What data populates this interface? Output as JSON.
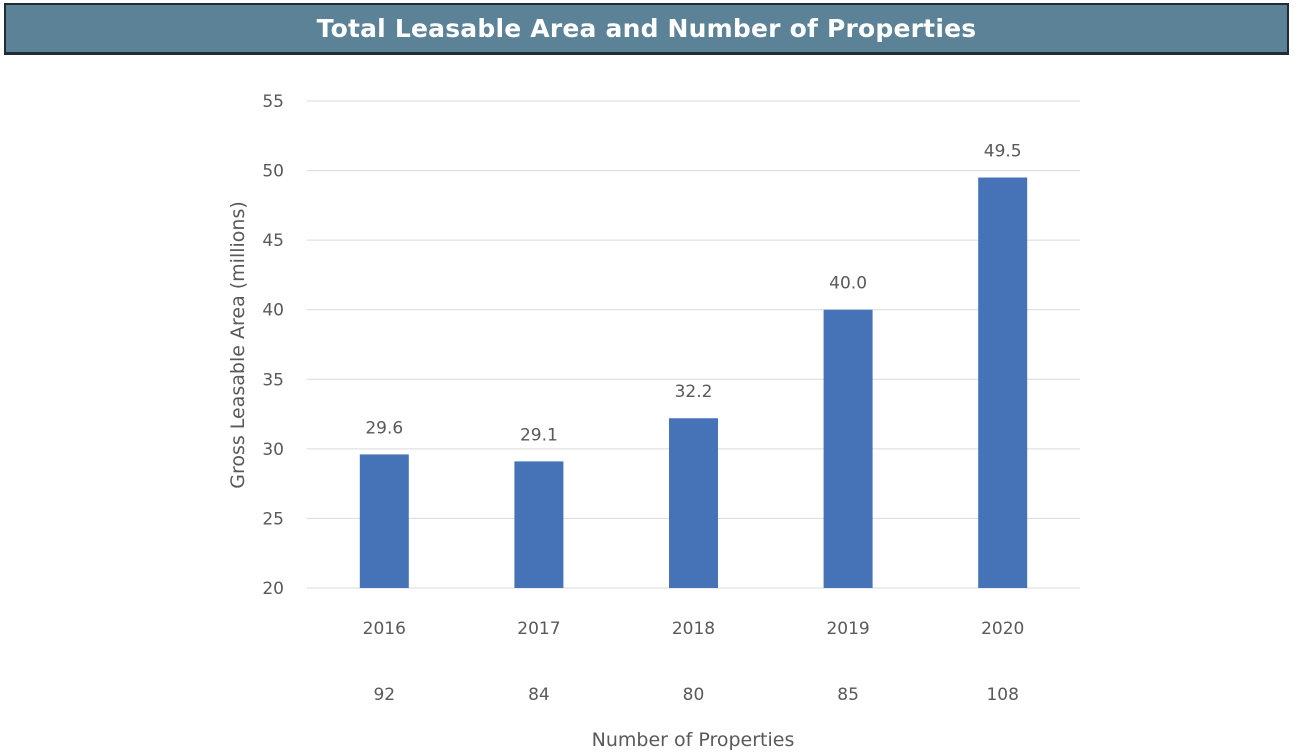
{
  "header": {
    "title": "Total Leasable Area and Number of Properties",
    "background": "#5c8297"
  },
  "chart_data": {
    "type": "bar",
    "categories": [
      "2016",
      "2017",
      "2018",
      "2019",
      "2020"
    ],
    "values": [
      29.6,
      29.1,
      32.2,
      40.0,
      49.5
    ],
    "data_labels": [
      "29.6",
      "29.1",
      "32.2",
      "40.0",
      "49.5"
    ],
    "secondary_labels": [
      "92",
      "84",
      "80",
      "85",
      "108"
    ],
    "title": "Total Leasable Area and Number of Properties",
    "xlabel": "Number of Properties",
    "ylabel": "Gross Leasable Area (millions)",
    "ylim": [
      20,
      55
    ],
    "yticks": [
      20,
      25,
      30,
      35,
      40,
      45,
      50,
      55
    ],
    "grid": true,
    "bar_color": "#4672b8",
    "grid_color": "#d9d9d9",
    "text_color": "#595959"
  }
}
